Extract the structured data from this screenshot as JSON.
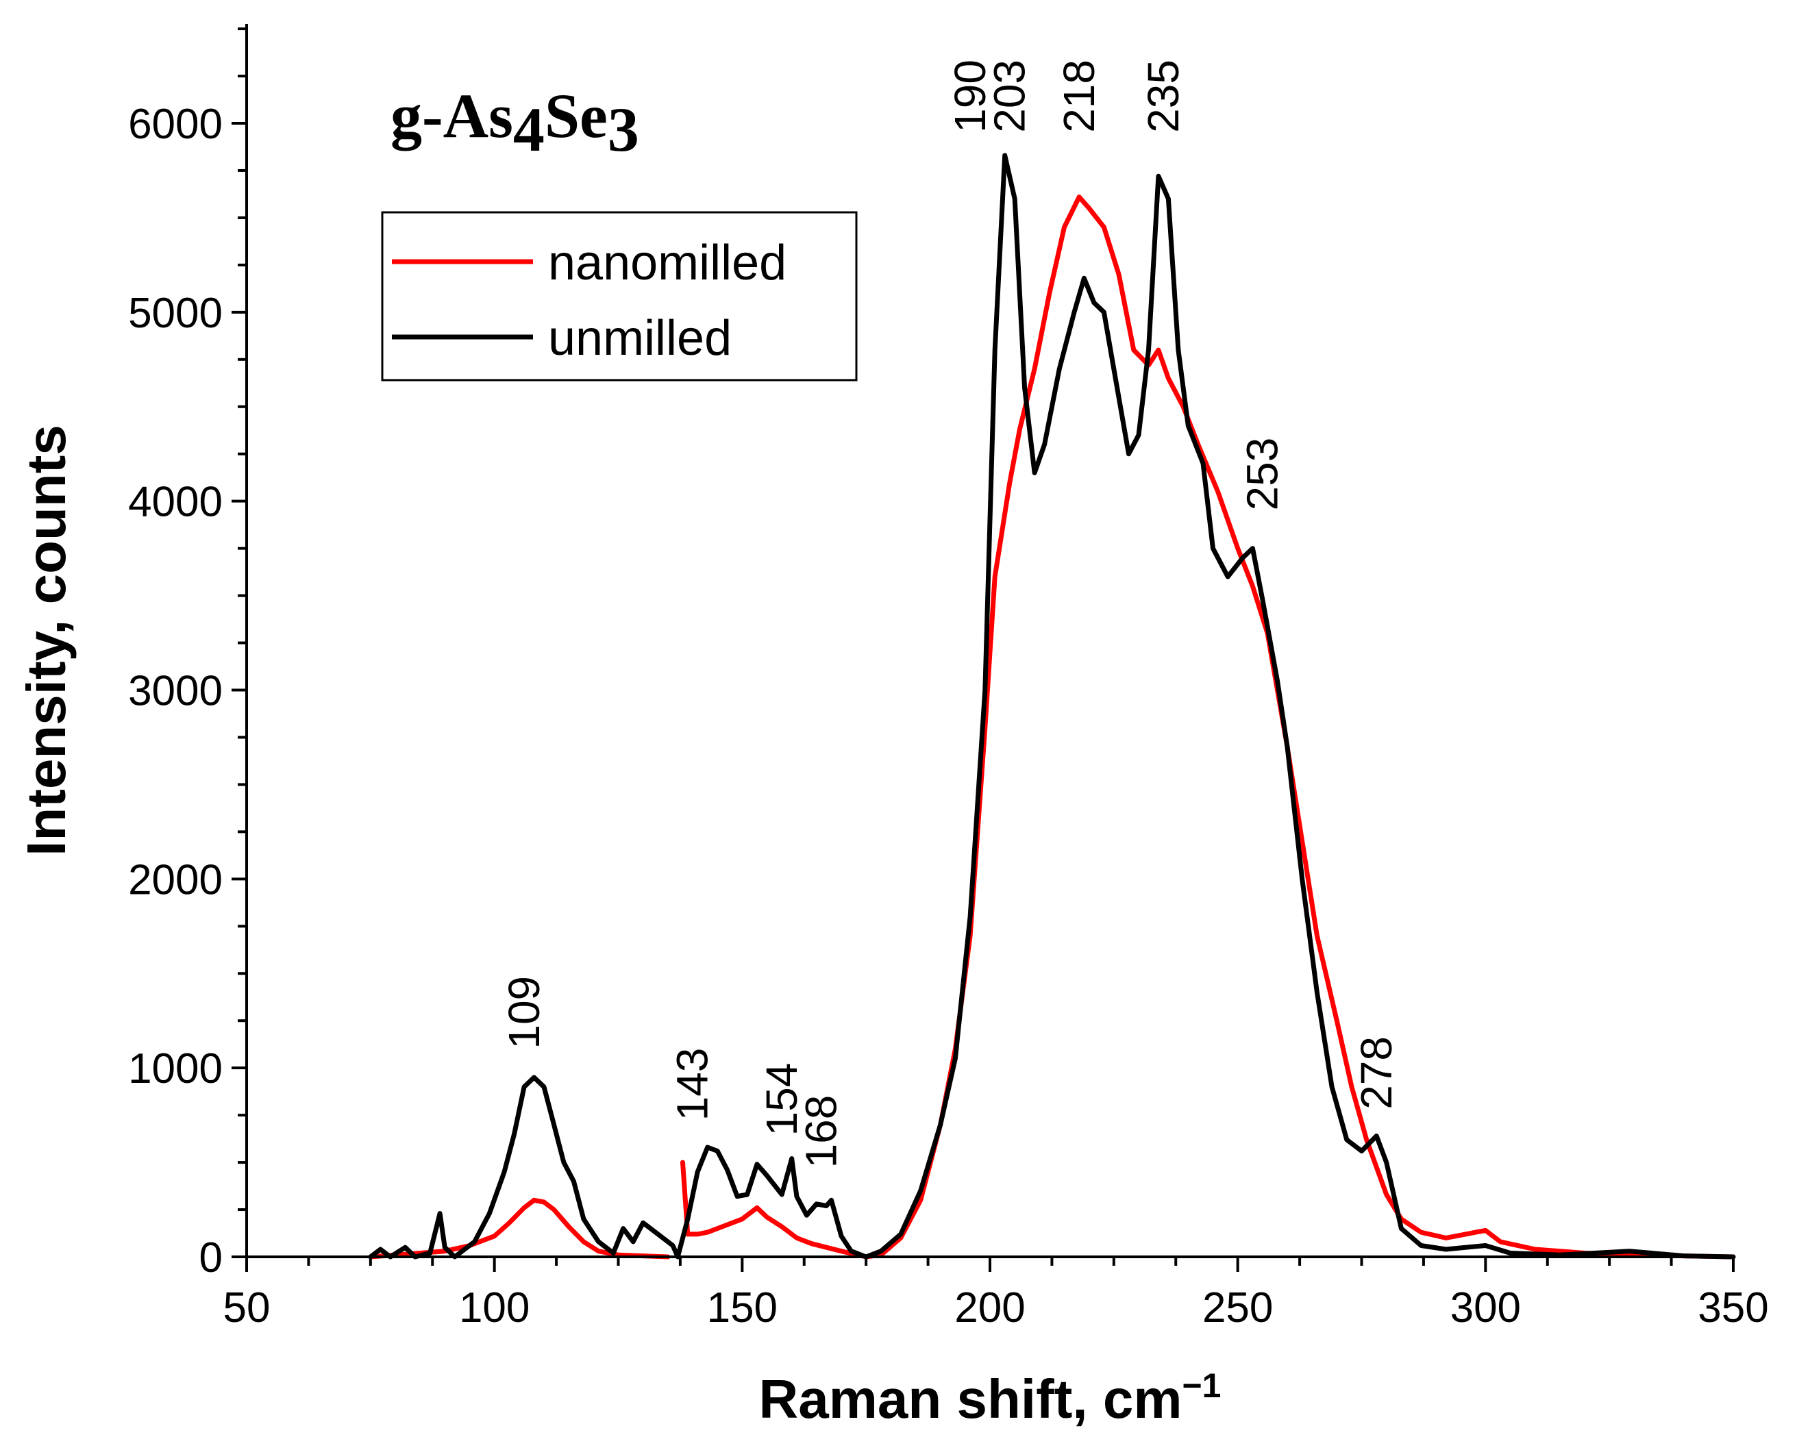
{
  "chart_data": {
    "type": "line",
    "title": "g-As4Se3",
    "title_parts": {
      "main": "g-As",
      "sub1": "4",
      "mid": "Se",
      "sub2": "3"
    },
    "xlabel": "Raman shift, cm",
    "xlabel_superscript": "−1",
    "ylabel": "Intensity, counts",
    "xlim": [
      50,
      350
    ],
    "ylim": [
      0,
      6500
    ],
    "xticks": [
      50,
      100,
      150,
      200,
      250,
      300,
      350
    ],
    "yticks": [
      0,
      1000,
      2000,
      3000,
      4000,
      5000,
      6000
    ],
    "legend_position": "upper-left",
    "series": [
      {
        "name": "nanomilled",
        "color": "#ff0000",
        "segments": [
          [
            [
              75,
              0
            ],
            [
              80,
              10
            ],
            [
              85,
              20
            ],
            [
              90,
              30
            ],
            [
              95,
              60
            ],
            [
              100,
              110
            ],
            [
              103,
              180
            ],
            [
              106,
              260
            ],
            [
              108,
              300
            ],
            [
              110,
              290
            ],
            [
              112,
              250
            ],
            [
              115,
              160
            ],
            [
              118,
              80
            ],
            [
              121,
              30
            ],
            [
              125,
              10
            ],
            [
              130,
              5
            ],
            [
              135,
              0
            ]
          ],
          [
            [
              138,
              500
            ],
            [
              139,
              120
            ],
            [
              141,
              120
            ],
            [
              143,
              130
            ],
            [
              146,
              160
            ],
            [
              150,
              200
            ],
            [
              153,
              260
            ],
            [
              155,
              210
            ],
            [
              158,
              160
            ],
            [
              161,
              100
            ],
            [
              164,
              70
            ],
            [
              167,
              50
            ],
            [
              170,
              30
            ],
            [
              175,
              0
            ],
            [
              178,
              10
            ],
            [
              182,
              100
            ],
            [
              186,
              300
            ],
            [
              190,
              700
            ],
            [
              193,
              1100
            ],
            [
              196,
              1700
            ],
            [
              199,
              2800
            ],
            [
              201,
              3600
            ],
            [
              204,
              4100
            ],
            [
              206,
              4380
            ],
            [
              209,
              4700
            ],
            [
              212,
              5100
            ],
            [
              215,
              5450
            ],
            [
              218,
              5610
            ],
            [
              220,
              5550
            ],
            [
              223,
              5450
            ],
            [
              226,
              5200
            ],
            [
              229,
              4800
            ],
            [
              232,
              4720
            ],
            [
              234,
              4800
            ],
            [
              236,
              4650
            ],
            [
              239,
              4500
            ],
            [
              242,
              4300
            ],
            [
              246,
              4050
            ],
            [
              250,
              3750
            ],
            [
              253,
              3550
            ],
            [
              256,
              3300
            ],
            [
              260,
              2700
            ],
            [
              263,
              2200
            ],
            [
              266,
              1700
            ],
            [
              270,
              1250
            ],
            [
              273,
              900
            ],
            [
              276,
              620
            ],
            [
              280,
              330
            ],
            [
              283,
              200
            ],
            [
              287,
              130
            ],
            [
              292,
              100
            ],
            [
              296,
              120
            ],
            [
              300,
              140
            ],
            [
              303,
              80
            ],
            [
              310,
              40
            ],
            [
              320,
              20
            ],
            [
              330,
              10
            ],
            [
              340,
              5
            ],
            [
              350,
              0
            ]
          ]
        ]
      },
      {
        "name": "unmilled",
        "color": "#000000",
        "segments": [
          [
            [
              75,
              0
            ],
            [
              77,
              40
            ],
            [
              79,
              0
            ],
            [
              82,
              50
            ],
            [
              84,
              0
            ],
            [
              87,
              20
            ],
            [
              89,
              230
            ],
            [
              90,
              50
            ],
            [
              92,
              0
            ],
            [
              96,
              80
            ],
            [
              99,
              230
            ],
            [
              102,
              450
            ],
            [
              104,
              650
            ],
            [
              106,
              900
            ],
            [
              108,
              950
            ],
            [
              110,
              900
            ],
            [
              112,
              700
            ],
            [
              114,
              500
            ],
            [
              116,
              400
            ],
            [
              118,
              200
            ],
            [
              121,
              80
            ],
            [
              124,
              20
            ],
            [
              126,
              150
            ],
            [
              128,
              80
            ],
            [
              130,
              180
            ],
            [
              133,
              120
            ],
            [
              136,
              60
            ],
            [
              137,
              0
            ],
            [
              139,
              200
            ],
            [
              141,
              450
            ],
            [
              143,
              580
            ],
            [
              145,
              560
            ],
            [
              147,
              460
            ],
            [
              149,
              320
            ],
            [
              151,
              330
            ],
            [
              153,
              490
            ],
            [
              155,
              430
            ],
            [
              158,
              330
            ],
            [
              160,
              520
            ],
            [
              161,
              320
            ],
            [
              163,
              220
            ],
            [
              165,
              280
            ],
            [
              167,
              270
            ],
            [
              168,
              300
            ],
            [
              170,
              110
            ],
            [
              172,
              30
            ],
            [
              175,
              0
            ],
            [
              178,
              30
            ],
            [
              182,
              120
            ],
            [
              186,
              350
            ],
            [
              190,
              700
            ],
            [
              193,
              1050
            ],
            [
              196,
              1800
            ],
            [
              199,
              3000
            ],
            [
              201,
              4800
            ],
            [
              203,
              5830
            ],
            [
              205,
              5600
            ],
            [
              207,
              4600
            ],
            [
              209,
              4150
            ],
            [
              211,
              4300
            ],
            [
              214,
              4700
            ],
            [
              217,
              5000
            ],
            [
              219,
              5180
            ],
            [
              221,
              5050
            ],
            [
              223,
              5000
            ],
            [
              225,
              4700
            ],
            [
              228,
              4250
            ],
            [
              230,
              4350
            ],
            [
              232,
              4800
            ],
            [
              234,
              5720
            ],
            [
              236,
              5600
            ],
            [
              238,
              4800
            ],
            [
              240,
              4400
            ],
            [
              243,
              4200
            ],
            [
              245,
              3750
            ],
            [
              248,
              3600
            ],
            [
              251,
              3700
            ],
            [
              253,
              3750
            ],
            [
              255,
              3480
            ],
            [
              258,
              3050
            ],
            [
              260,
              2700
            ],
            [
              263,
              2000
            ],
            [
              266,
              1400
            ],
            [
              269,
              900
            ],
            [
              272,
              620
            ],
            [
              275,
              560
            ],
            [
              278,
              640
            ],
            [
              280,
              500
            ],
            [
              283,
              150
            ],
            [
              287,
              60
            ],
            [
              292,
              40
            ],
            [
              300,
              60
            ],
            [
              305,
              20
            ],
            [
              315,
              10
            ],
            [
              329,
              30
            ],
            [
              340,
              5
            ],
            [
              350,
              0
            ]
          ]
        ]
      }
    ],
    "peak_labels": [
      {
        "text": "109",
        "x": 109,
        "y": 1100
      },
      {
        "text": "143",
        "x": 143,
        "y": 720
      },
      {
        "text": "154",
        "x": 161,
        "y": 640
      },
      {
        "text": "168",
        "x": 169,
        "y": 470
      },
      {
        "text": "190",
        "x": 199,
        "y": 5950
      },
      {
        "text": "203",
        "x": 207,
        "y": 5950
      },
      {
        "text": "218",
        "x": 221,
        "y": 5950
      },
      {
        "text": "235",
        "x": 238,
        "y": 5950
      },
      {
        "text": "253",
        "x": 258,
        "y": 3950
      },
      {
        "text": "278",
        "x": 281,
        "y": 780
      }
    ]
  }
}
